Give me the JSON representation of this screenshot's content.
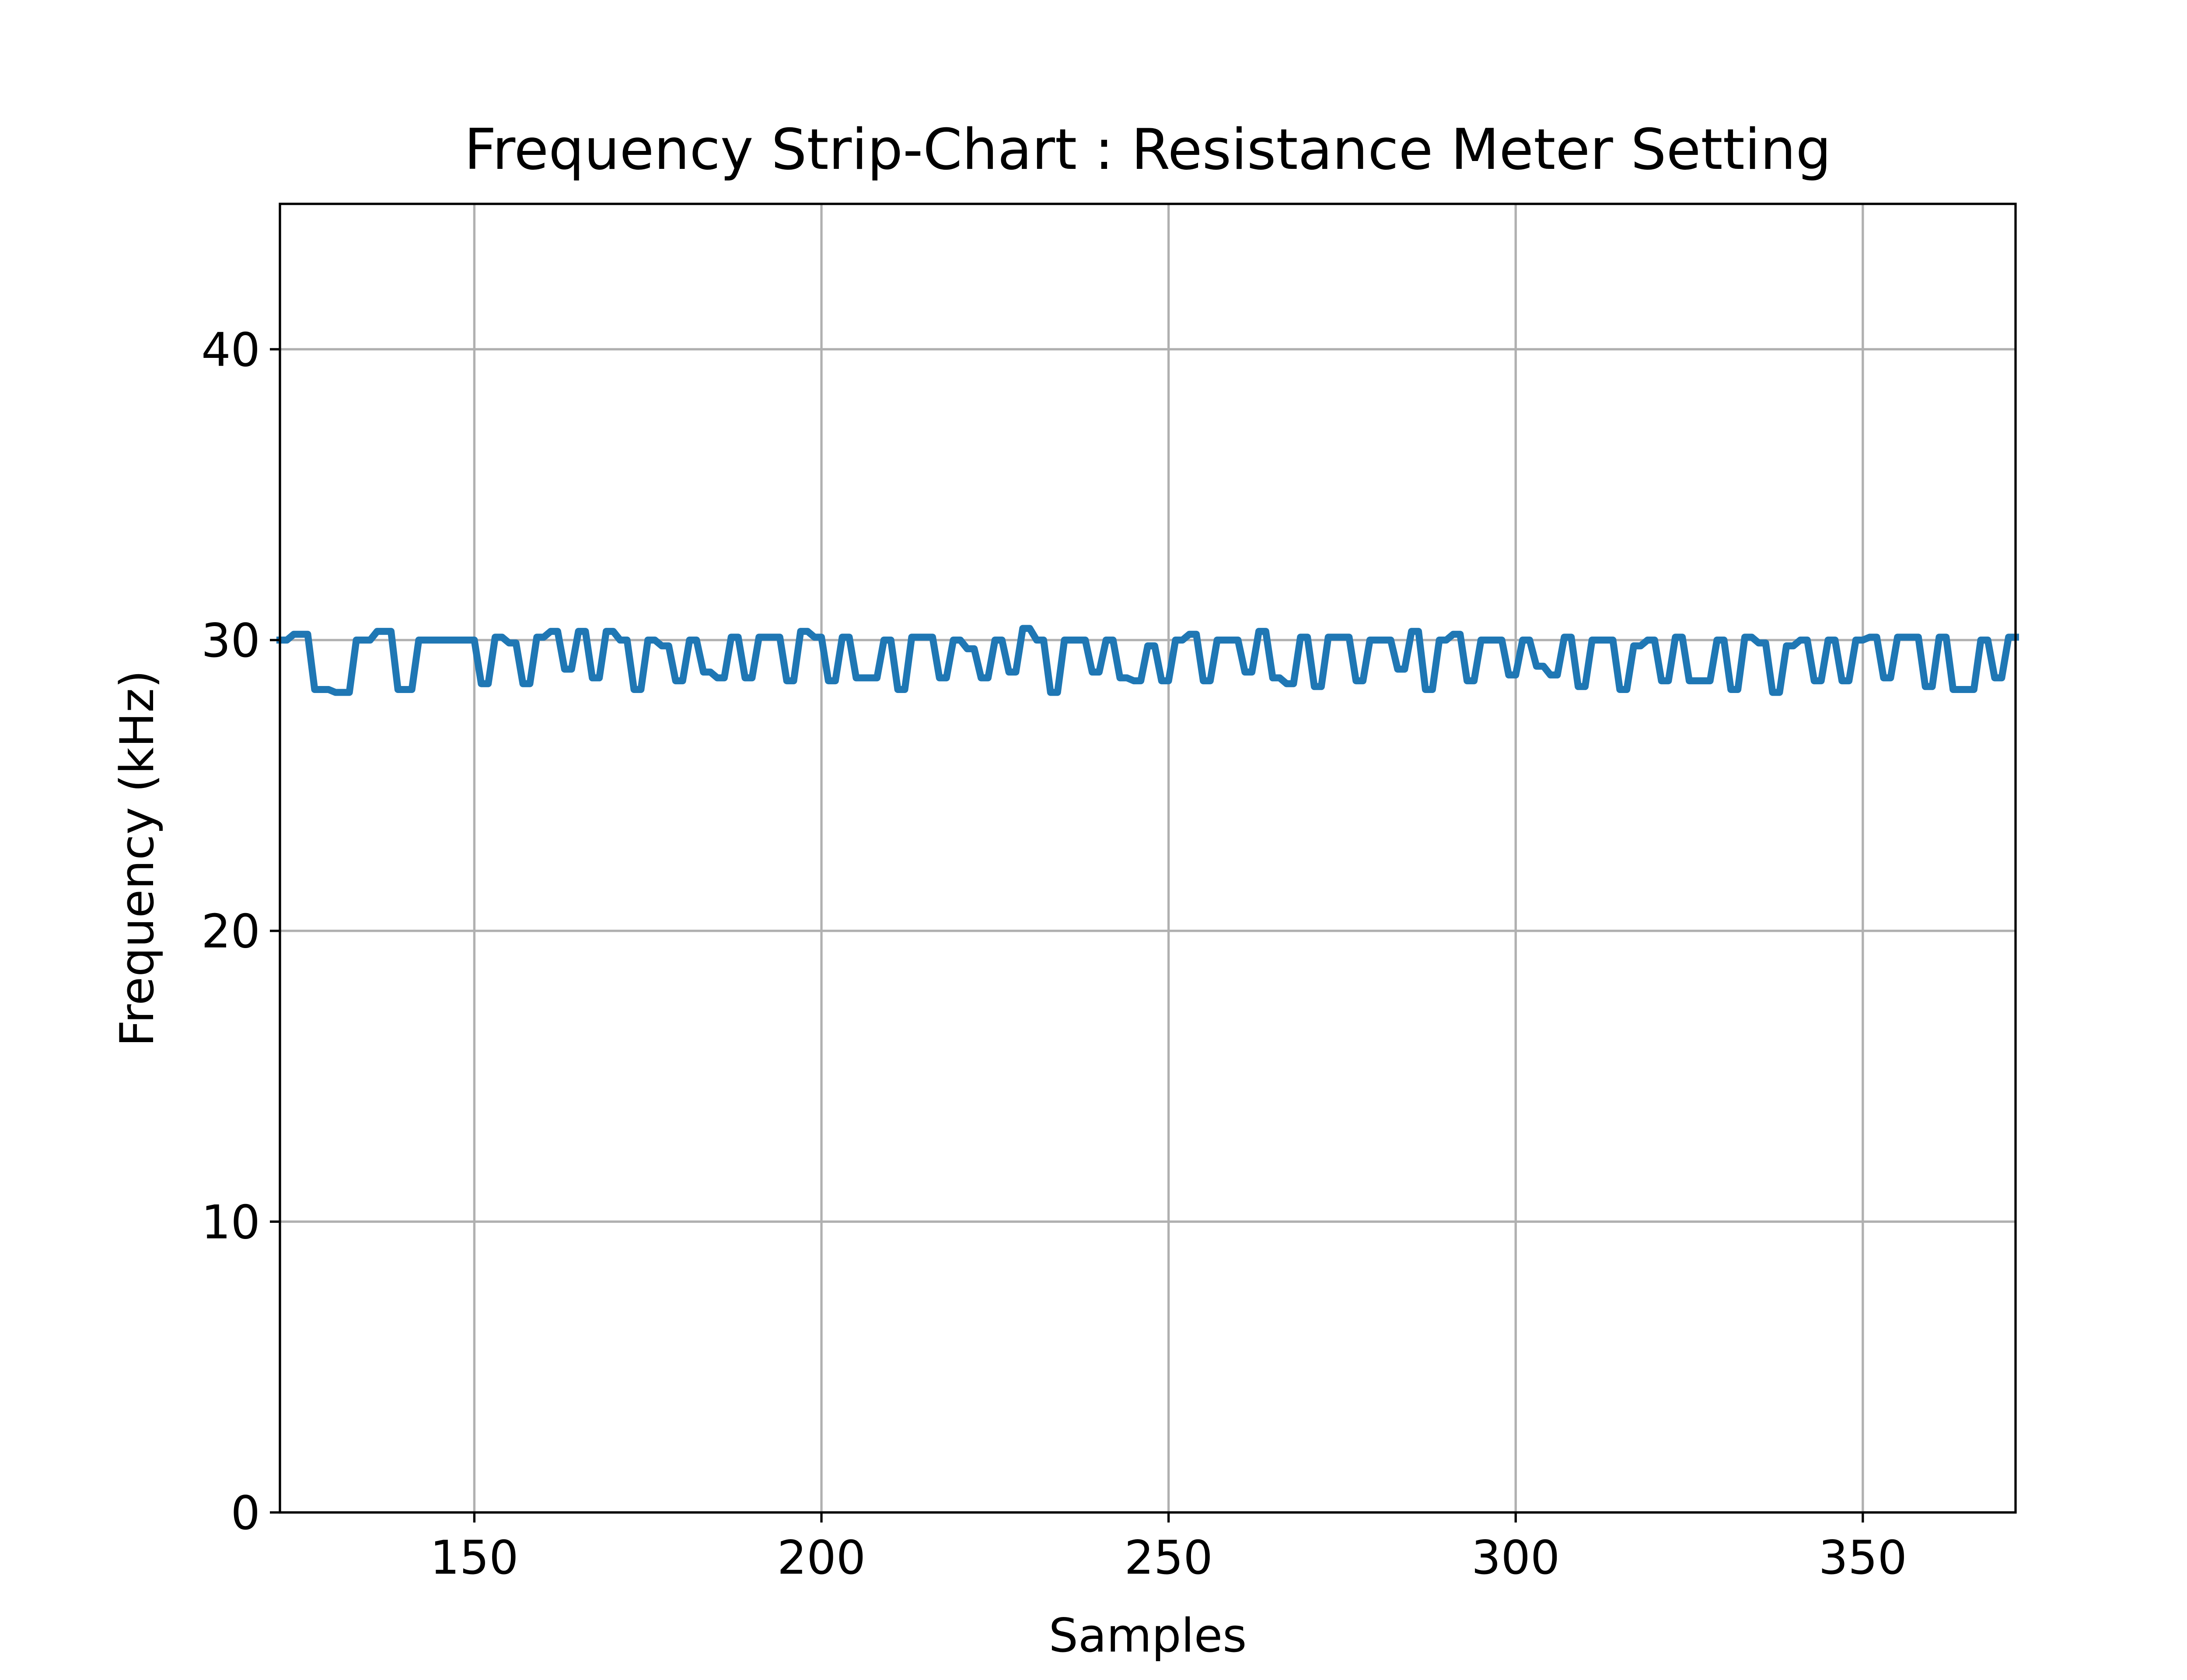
{
  "chart_data": {
    "type": "line",
    "title": "Frequency Strip-Chart : Resistance Meter Setting",
    "xlabel": "Samples",
    "ylabel": "Frequency (kHz)",
    "xlim": [
      122,
      372
    ],
    "ylim": [
      0,
      45
    ],
    "xticks": [
      150,
      200,
      250,
      300,
      350
    ],
    "yticks": [
      0,
      10,
      20,
      30,
      40
    ],
    "grid": true,
    "legend": "none",
    "colors": {
      "series": "#1f77b4",
      "grid": "#b0b0b0"
    },
    "series": [
      {
        "x": [
          122,
          123,
          124,
          125,
          126,
          127,
          128,
          129,
          130,
          131,
          132,
          133,
          134,
          135,
          136,
          137,
          138,
          139,
          140,
          141,
          142,
          143,
          144,
          145,
          146,
          147,
          148,
          149,
          150,
          151,
          152,
          153,
          154,
          155,
          156,
          157,
          158,
          159,
          160,
          161,
          162,
          163,
          164,
          165,
          166,
          167,
          168,
          169,
          170,
          171,
          172,
          173,
          174,
          175,
          176,
          177,
          178,
          179,
          180,
          181,
          182,
          183,
          184,
          185,
          186,
          187,
          188,
          189,
          190,
          191,
          192,
          193,
          194,
          195,
          196,
          197,
          198,
          199,
          200,
          201,
          202,
          203,
          204,
          205,
          206,
          207,
          208,
          209,
          210,
          211,
          212,
          213,
          214,
          215,
          216,
          217,
          218,
          219,
          220,
          221,
          222,
          223,
          224,
          225,
          226,
          227,
          228,
          229,
          230,
          231,
          232,
          233,
          234,
          235,
          236,
          237,
          238,
          239,
          240,
          241,
          242,
          243,
          244,
          245,
          246,
          247,
          248,
          249,
          250,
          251,
          252,
          253,
          254,
          255,
          256,
          257,
          258,
          259,
          260,
          261,
          262,
          263,
          264,
          265,
          266,
          267,
          268,
          269,
          270,
          271,
          272,
          273,
          274,
          275,
          276,
          277,
          278,
          279,
          280,
          281,
          282,
          283,
          284,
          285,
          286,
          287,
          288,
          289,
          290,
          291,
          292,
          293,
          294,
          295,
          296,
          297,
          298,
          299,
          300,
          301,
          302,
          303,
          304,
          305,
          306,
          307,
          308,
          309,
          310,
          311,
          312,
          313,
          314,
          315,
          316,
          317,
          318,
          319,
          320,
          321,
          322,
          323,
          324,
          325,
          326,
          327,
          328,
          329,
          330,
          331,
          332,
          333,
          334,
          335,
          336,
          337,
          338,
          339,
          340,
          341,
          342,
          343,
          344,
          345,
          346,
          347,
          348,
          349,
          350,
          351,
          352,
          353,
          354,
          355,
          356,
          357,
          358,
          359,
          360,
          361,
          362,
          363,
          364,
          365,
          366,
          367,
          368,
          369,
          370,
          371,
          372
        ],
        "y": [
          30.0,
          30.0,
          30.2,
          30.2,
          30.2,
          28.3,
          28.3,
          28.3,
          28.2,
          28.2,
          28.2,
          30.0,
          30.0,
          30.0,
          30.3,
          30.3,
          30.3,
          28.3,
          28.3,
          28.3,
          30.0,
          30.0,
          30.0,
          30.0,
          30.0,
          30.0,
          30.0,
          30.0,
          30.0,
          28.5,
          28.5,
          30.1,
          30.1,
          29.9,
          29.9,
          28.5,
          28.5,
          30.1,
          30.1,
          30.3,
          30.3,
          29.0,
          29.0,
          30.3,
          30.3,
          28.7,
          28.7,
          30.3,
          30.3,
          30.0,
          30.0,
          28.3,
          28.3,
          30.0,
          30.0,
          29.8,
          29.8,
          28.6,
          28.6,
          30.0,
          30.0,
          28.9,
          28.9,
          28.7,
          28.7,
          30.1,
          30.1,
          28.7,
          28.7,
          30.1,
          30.1,
          30.1,
          30.1,
          28.6,
          28.6,
          30.3,
          30.3,
          30.1,
          30.1,
          28.6,
          28.6,
          30.1,
          30.1,
          28.7,
          28.7,
          28.7,
          28.7,
          30.0,
          30.0,
          28.3,
          28.3,
          30.1,
          30.1,
          30.1,
          30.1,
          28.7,
          28.7,
          30.0,
          30.0,
          29.7,
          29.7,
          28.7,
          28.7,
          30.0,
          30.0,
          28.9,
          28.9,
          30.4,
          30.4,
          30.0,
          30.0,
          28.2,
          28.2,
          30.0,
          30.0,
          30.0,
          30.0,
          28.9,
          28.9,
          30.0,
          30.0,
          28.7,
          28.7,
          28.6,
          28.6,
          29.8,
          29.8,
          28.6,
          28.6,
          30.0,
          30.0,
          30.2,
          30.2,
          28.6,
          28.6,
          30.0,
          30.0,
          30.0,
          30.0,
          28.9,
          28.9,
          30.3,
          30.3,
          28.7,
          28.7,
          28.5,
          28.5,
          30.1,
          30.1,
          28.4,
          28.4,
          30.1,
          30.1,
          30.1,
          30.1,
          28.6,
          28.6,
          30.0,
          30.0,
          30.0,
          30.0,
          29.0,
          29.0,
          30.3,
          30.3,
          28.3,
          28.3,
          30.0,
          30.0,
          30.2,
          30.2,
          28.6,
          28.6,
          30.0,
          30.0,
          30.0,
          30.0,
          28.8,
          28.8,
          30.0,
          30.0,
          29.1,
          29.1,
          28.8,
          28.8,
          30.1,
          30.1,
          28.4,
          28.4,
          30.0,
          30.0,
          30.0,
          30.0,
          28.3,
          28.3,
          29.8,
          29.8,
          30.0,
          30.0,
          28.6,
          28.6,
          30.1,
          30.1,
          28.6,
          28.6,
          28.6,
          28.6,
          30.0,
          30.0,
          28.3,
          28.3,
          30.1,
          30.1,
          29.9,
          29.9,
          28.2,
          28.2,
          29.8,
          29.8,
          30.0,
          30.0,
          28.6,
          28.6,
          30.0,
          30.0,
          28.6,
          28.6,
          30.0,
          30.0,
          30.1,
          30.1,
          28.7,
          28.7,
          30.1,
          30.1,
          30.1,
          30.1,
          28.4,
          28.4,
          30.1,
          30.1,
          28.3,
          28.3,
          28.3,
          28.3,
          30.0,
          30.0,
          28.7,
          28.7,
          30.1,
          30.1
        ]
      }
    ]
  }
}
